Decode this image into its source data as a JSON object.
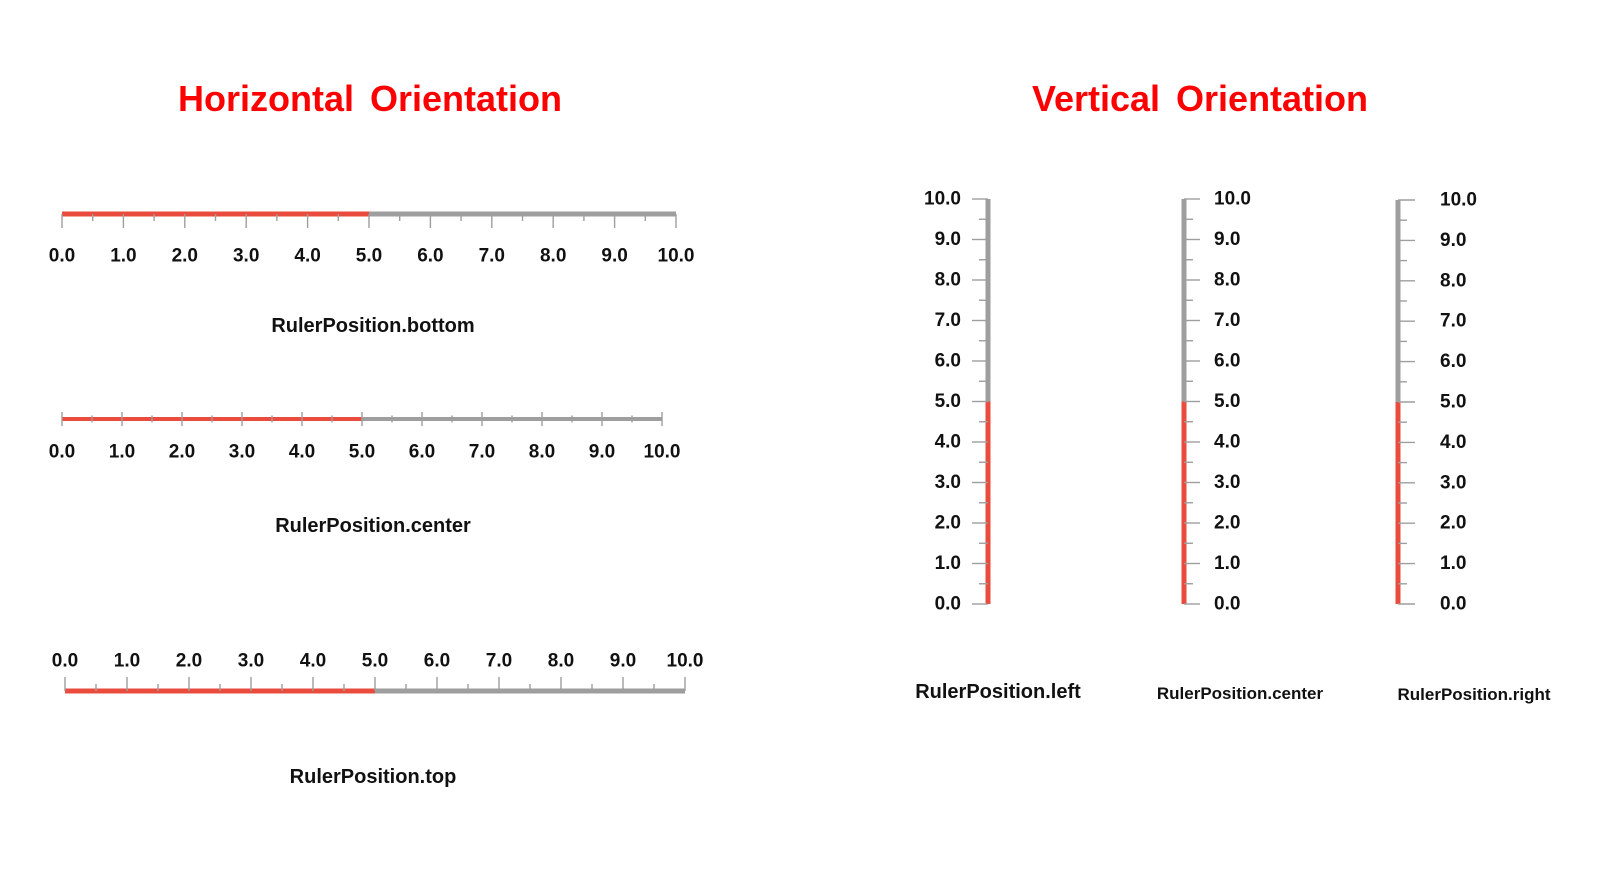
{
  "headings": {
    "horizontal": "Horizontal  Orientation",
    "vertical": "Vertical  Orientation"
  },
  "colors": {
    "heading": "#ff0000",
    "value_bar": "#e94b3c",
    "track": "#9e9e9e",
    "tick": "#9e9e9e",
    "label": "#111111"
  },
  "scale": {
    "min": 0,
    "max": 10,
    "major_step": 1,
    "minor_per_major": 2,
    "value": 5,
    "labels": [
      "0.0",
      "1.0",
      "2.0",
      "3.0",
      "4.0",
      "5.0",
      "6.0",
      "7.0",
      "8.0",
      "9.0",
      "10.0"
    ]
  },
  "gauges": [
    {
      "id": "h-bottom",
      "orientation": "horizontal",
      "ruler_position": "bottom",
      "caption": "RulerPosition.bottom"
    },
    {
      "id": "h-center",
      "orientation": "horizontal",
      "ruler_position": "center",
      "caption": "RulerPosition.center"
    },
    {
      "id": "h-top",
      "orientation": "horizontal",
      "ruler_position": "top",
      "caption": "RulerPosition.top"
    },
    {
      "id": "v-left",
      "orientation": "vertical",
      "ruler_position": "left",
      "caption": "RulerPosition.left"
    },
    {
      "id": "v-center",
      "orientation": "vertical",
      "ruler_position": "center",
      "caption": "RulerPosition.center"
    },
    {
      "id": "v-right",
      "orientation": "vertical",
      "ruler_position": "right",
      "caption": "RulerPosition.right"
    }
  ]
}
